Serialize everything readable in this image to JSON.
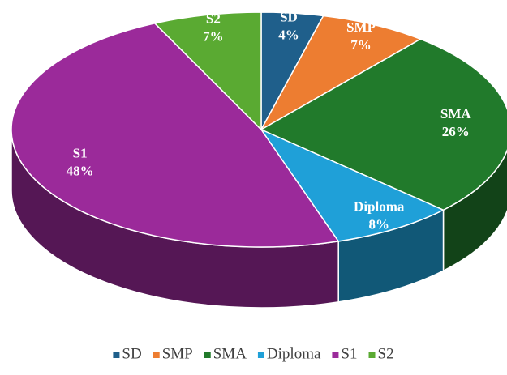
{
  "chart_data": {
    "type": "pie",
    "categories": [
      "SD",
      "SMP",
      "SMA",
      "Diploma",
      "S1",
      "S2"
    ],
    "values": [
      4,
      7,
      26,
      8,
      48,
      7
    ],
    "value_labels": [
      "4%",
      "7%",
      "26%",
      "8%",
      "48%",
      "7%"
    ],
    "colors": [
      "#1f5f8b",
      "#ed7d31",
      "#217a2b",
      "#1fa0d8",
      "#9b2a9a",
      "#5aaa32"
    ],
    "legend": "bottom"
  }
}
